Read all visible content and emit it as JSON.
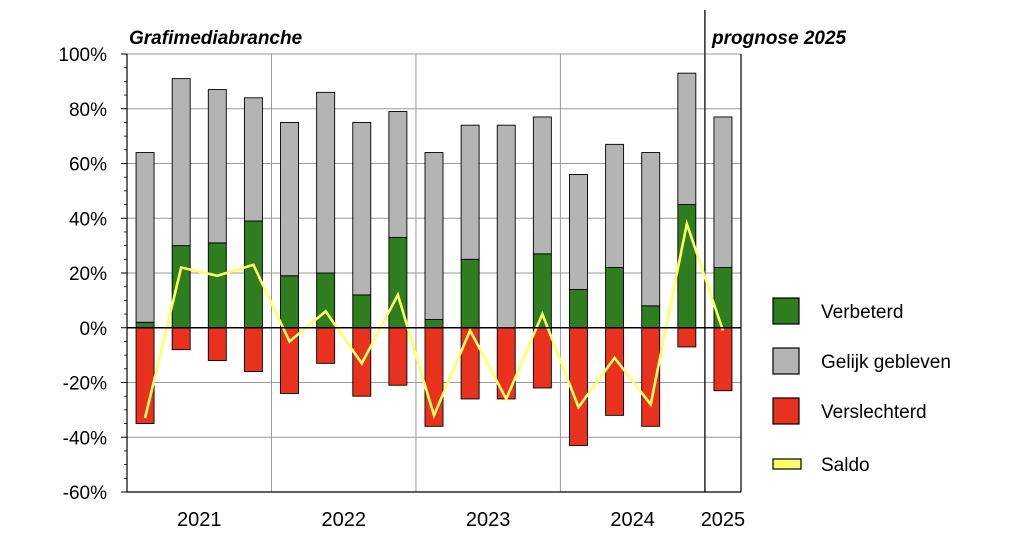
{
  "chart_data": {
    "type": "bar",
    "title": "Grafimediabranche",
    "prognosis_label": "prognose 2025",
    "ylim": [
      -60,
      100
    ],
    "yticks": [
      100,
      80,
      60,
      40,
      20,
      0,
      -20,
      -40,
      -60
    ],
    "ytick_labels": [
      "100%",
      "80%",
      "60%",
      "40%",
      "20%",
      "0%",
      "-20%",
      "-40%",
      "-60%"
    ],
    "grid": true,
    "legend_position": "right",
    "groups": [
      {
        "label": "2021",
        "count": 4
      },
      {
        "label": "2022",
        "count": 4
      },
      {
        "label": "2023",
        "count": 4
      },
      {
        "label": "2024",
        "count": 4
      },
      {
        "label": "2025",
        "count": 1
      }
    ],
    "series": [
      {
        "name": "Verbeterd",
        "color": "#2e7d1e",
        "values": [
          2,
          30,
          31,
          39,
          19,
          20,
          12,
          33,
          3,
          25,
          0,
          27,
          14,
          22,
          8,
          45,
          22
        ]
      },
      {
        "name": "Gelijk gebleven",
        "color": "#b4b4b4",
        "values": [
          62,
          61,
          56,
          45,
          56,
          66,
          63,
          46,
          61,
          49,
          74,
          50,
          42,
          45,
          56,
          48,
          55
        ]
      },
      {
        "name": "Verslechterd",
        "color": "#e8321e",
        "values": [
          -35,
          -8,
          -12,
          -16,
          -24,
          -13,
          -25,
          -21,
          -36,
          -26,
          -26,
          -22,
          -43,
          -32,
          -36,
          -7,
          -23
        ]
      },
      {
        "name": "Saldo",
        "color": "#ffff66",
        "values": [
          -33,
          22,
          19,
          23,
          -5,
          6,
          -13,
          12,
          -32,
          -1,
          -26,
          5,
          -29,
          -11,
          -28,
          38,
          -1
        ]
      }
    ]
  }
}
